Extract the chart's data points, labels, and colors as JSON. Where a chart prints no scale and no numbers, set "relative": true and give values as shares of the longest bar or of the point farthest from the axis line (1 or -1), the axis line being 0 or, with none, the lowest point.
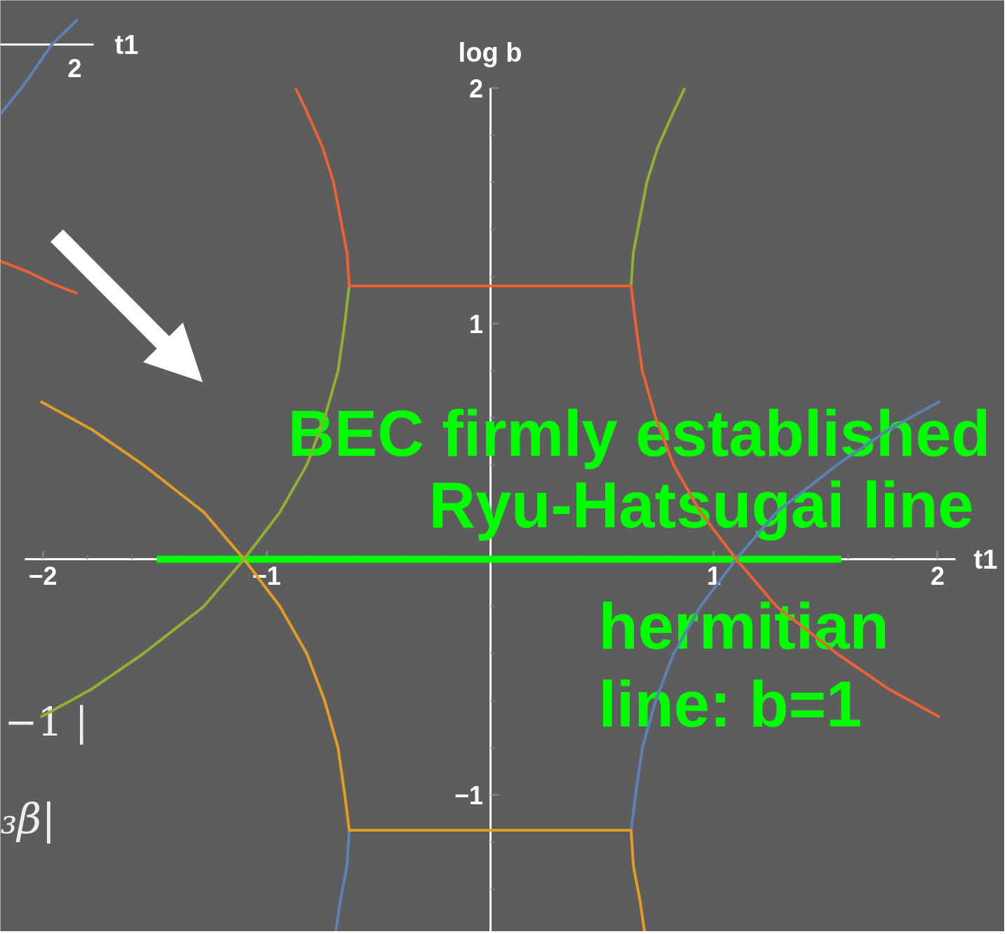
{
  "chart_data": [
    {
      "type": "line",
      "xlabel": "t1",
      "ylabel": "log b",
      "xlim": [
        -2.08,
        2.08
      ],
      "ylim": [
        -1.58,
        2
      ],
      "xticks": [
        {
          "value": -2,
          "label": "−2"
        },
        {
          "value": -1.8,
          "label": null
        },
        {
          "value": -1.6,
          "label": null
        },
        {
          "value": -1.4,
          "label": null
        },
        {
          "value": -1.2,
          "label": null
        },
        {
          "value": -1,
          "label": "−1"
        },
        {
          "value": -0.8,
          "label": null
        },
        {
          "value": -0.6,
          "label": null
        },
        {
          "value": -0.4,
          "label": null
        },
        {
          "value": -0.2,
          "label": null
        },
        {
          "value": 0.2,
          "label": null
        },
        {
          "value": 0.4,
          "label": null
        },
        {
          "value": 0.6,
          "label": null
        },
        {
          "value": 0.8,
          "label": null
        },
        1,
        {
          "value": 1.2,
          "label": null
        },
        {
          "value": 1.4,
          "label": null
        },
        {
          "value": 1.6,
          "label": null
        },
        {
          "value": 1.8,
          "label": null
        },
        2
      ],
      "yticks": [
        {
          "value": -1.4,
          "label": null
        },
        {
          "value": -1.2,
          "label": null
        },
        {
          "value": -1,
          "label": "−1"
        },
        {
          "value": -0.8,
          "label": null
        },
        {
          "value": -0.6,
          "label": null
        },
        {
          "value": -0.4,
          "label": null
        },
        {
          "value": -0.2,
          "label": null
        },
        {
          "value": 0.2,
          "label": null
        },
        {
          "value": 0.4,
          "label": null
        },
        {
          "value": 0.6,
          "label": null
        },
        {
          "value": 0.8,
          "label": null
        },
        1,
        {
          "value": 1.2,
          "label": null
        },
        {
          "value": 1.4,
          "label": null
        },
        {
          "value": 1.6,
          "label": null
        },
        {
          "value": 1.8,
          "label": null
        },
        2
      ],
      "series": [
        {
          "color": "#00ff00",
          "x": [
            -1.49,
            1.57
          ],
          "values": [
            0,
            0
          ]
        },
        {
          "color": "#5e81b5",
          "x": [
            -0.63,
            -0.64,
            -0.67,
            -0.69,
            0,
            0.63,
            0.65,
            0.68,
            0.74,
            0.82,
            0.94,
            1.1,
            1.28,
            1.55,
            1.78,
            2.01
          ],
          "values": [
            -1.15,
            -1.3,
            -1.45,
            -1.58,
            null,
            -1.15,
            -1,
            -0.8,
            -0.6,
            -0.4,
            -0.2,
            0,
            0.2,
            0.4,
            0.55,
            0.67
          ]
        },
        {
          "color": "#e19c24",
          "x": [
            -2.01,
            -1.78,
            -1.55,
            -1.28,
            -1.1,
            -0.94,
            -0.82,
            -0.74,
            -0.68,
            -0.65,
            -0.63,
            0.63,
            0.64,
            0.67,
            0.69
          ],
          "values": [
            0.67,
            0.55,
            0.4,
            0.2,
            0,
            -0.2,
            -0.4,
            -0.6,
            -0.8,
            -1,
            -1.15,
            -1.15,
            -1.3,
            -1.45,
            -1.58
          ]
        },
        {
          "color": "#8fb032",
          "x": [
            0.87,
            0.82,
            0.75,
            0.7,
            0.67,
            0.64,
            0.63,
            0,
            -0.63,
            -0.65,
            -0.68,
            -0.74,
            -0.82,
            -0.94,
            -1.1,
            -1.28,
            -1.55,
            -1.78,
            -2.01
          ],
          "values": [
            2,
            1.9,
            1.75,
            1.6,
            1.45,
            1.3,
            1.16,
            null,
            1.16,
            1,
            0.8,
            0.6,
            0.4,
            0.2,
            0,
            -0.2,
            -0.4,
            -0.55,
            -0.67
          ]
        },
        {
          "color": "#eb6235",
          "x": [
            -0.87,
            -0.82,
            -0.75,
            -0.7,
            -0.67,
            -0.64,
            -0.63,
            0.63,
            0.65,
            0.68,
            0.74,
            0.82,
            0.94,
            1.1,
            1.28,
            1.55,
            1.78,
            2.01
          ],
          "values": [
            2,
            1.9,
            1.75,
            1.6,
            1.45,
            1.3,
            1.16,
            1.16,
            1,
            0.8,
            0.6,
            0.4,
            0.2,
            0,
            -0.2,
            -0.4,
            -0.55,
            -0.67
          ]
        }
      ],
      "annotations": [
        "BEC firmly established",
        "Ryu-Hatsugai line",
        "hermitian",
        "line: b=1",
        "−1 |",
        "₃β|"
      ]
    },
    {
      "type": "line",
      "xlabel": "t1",
      "categories": [
        null,
        null,
        null,
        null
      ],
      "relative": true,
      "annotations": [
        "2"
      ],
      "series": [
        {
          "color": "#5e81b5",
          "values": [
            -0.28,
            -0.15,
            0,
            0.1
          ]
        },
        {
          "color": "#eb6235",
          "values": [
            -0.87,
            -0.91,
            -0.96,
            -1
          ]
        }
      ]
    }
  ]
}
